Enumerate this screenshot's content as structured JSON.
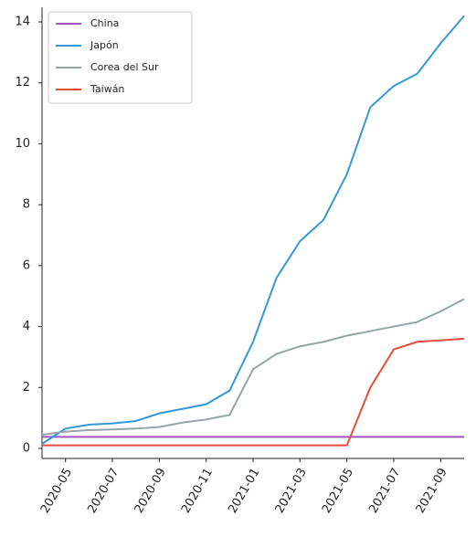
{
  "chart_data": {
    "type": "line",
    "x": [
      "2020-04",
      "2020-05",
      "2020-06",
      "2020-07",
      "2020-08",
      "2020-09",
      "2020-10",
      "2020-11",
      "2020-12",
      "2021-01",
      "2021-02",
      "2021-03",
      "2021-04",
      "2021-05",
      "2021-06",
      "2021-07",
      "2021-08",
      "2021-09",
      "2021-10"
    ],
    "series": [
      {
        "name": "China",
        "color": "#9b59b6",
        "values": [
          0.38,
          0.38,
          0.38,
          0.38,
          0.38,
          0.38,
          0.38,
          0.38,
          0.38,
          0.38,
          0.38,
          0.38,
          0.38,
          0.38,
          0.38,
          0.38,
          0.38,
          0.38,
          0.38
        ]
      },
      {
        "name": "Japón",
        "color": "#3498db",
        "values": [
          0.15,
          0.65,
          0.78,
          0.82,
          0.9,
          1.15,
          1.3,
          1.45,
          1.9,
          3.5,
          5.6,
          6.8,
          7.5,
          9.0,
          11.2,
          11.9,
          12.3,
          13.3,
          14.2
        ]
      },
      {
        "name": "Corea del Sur",
        "color": "#95a5a6",
        "values": [
          0.45,
          0.55,
          0.6,
          0.62,
          0.65,
          0.7,
          0.85,
          0.95,
          1.1,
          2.6,
          3.1,
          3.35,
          3.5,
          3.7,
          3.85,
          4.0,
          4.15,
          4.5,
          4.9
        ]
      },
      {
        "name": "Taiwán",
        "color": "#e74c3c",
        "values": [
          0.1,
          0.1,
          0.1,
          0.1,
          0.1,
          0.1,
          0.1,
          0.1,
          0.1,
          0.1,
          0.1,
          0.1,
          0.1,
          0.1,
          2.0,
          3.25,
          3.5,
          3.55,
          3.6
        ]
      }
    ],
    "xlim": [
      "2020-04",
      "2021-10"
    ],
    "ylim": [
      -0.33,
      14.48
    ],
    "xticks": [
      "2020-05",
      "2020-07",
      "2020-09",
      "2020-11",
      "2021-01",
      "2021-03",
      "2021-05",
      "2021-07",
      "2021-09"
    ],
    "yticks": [
      0,
      2,
      4,
      6,
      8,
      10,
      12,
      14
    ],
    "grid": false,
    "legend": "upper-left"
  }
}
